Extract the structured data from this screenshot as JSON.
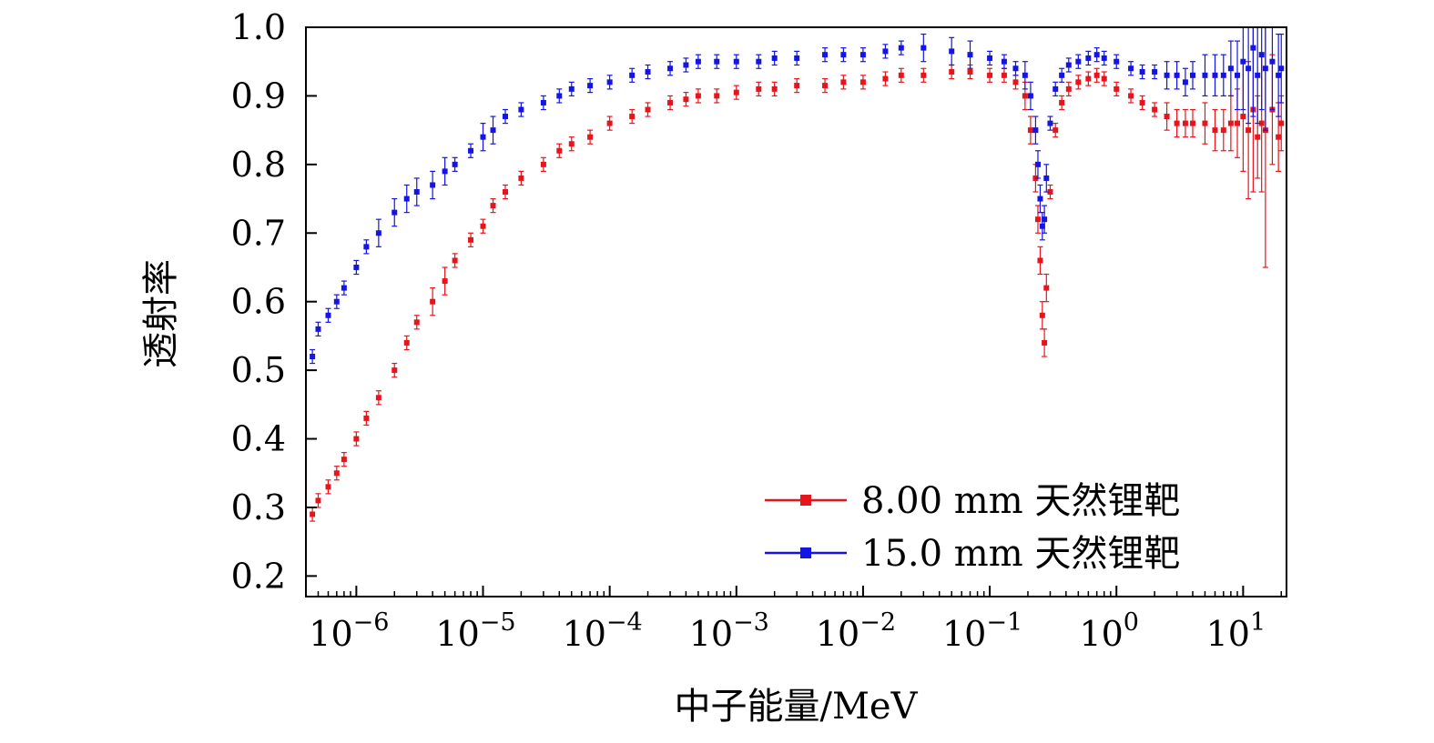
{
  "chart_data": {
    "type": "scatter",
    "title": "",
    "xlabel": "中子能量/MeV",
    "ylabel": "透射率",
    "xscale": "log",
    "xlim": [
      4e-07,
      22
    ],
    "ylim": [
      0.17,
      1.0
    ],
    "x_ticks": [
      {
        "value": 1e-06,
        "base": "10",
        "exp": "−6"
      },
      {
        "value": 1e-05,
        "base": "10",
        "exp": "−5"
      },
      {
        "value": 0.0001,
        "base": "10",
        "exp": "−4"
      },
      {
        "value": 0.001,
        "base": "10",
        "exp": "−3"
      },
      {
        "value": 0.01,
        "base": "10",
        "exp": "−2"
      },
      {
        "value": 0.1,
        "base": "10",
        "exp": "−1"
      },
      {
        "value": 1,
        "base": "10",
        "exp": "0"
      },
      {
        "value": 10,
        "base": "10",
        "exp": "1"
      }
    ],
    "y_ticks": [
      "0.2",
      "0.3",
      "0.4",
      "0.5",
      "0.6",
      "0.7",
      "0.8",
      "0.9",
      "1.0"
    ],
    "grid": false,
    "legend_position": "bottom-right",
    "series": [
      {
        "name": "8.00 mm 天然锂靶",
        "color": "#e8141c",
        "marker": "square",
        "error_bars": true,
        "x": [
          4.5e-07,
          5e-07,
          6e-07,
          7e-07,
          8e-07,
          1e-06,
          1.2e-06,
          1.5e-06,
          2e-06,
          2.5e-06,
          3e-06,
          4e-06,
          5e-06,
          6e-06,
          8e-06,
          1e-05,
          1.2e-05,
          1.5e-05,
          2e-05,
          3e-05,
          4e-05,
          5e-05,
          7e-05,
          0.0001,
          0.00015,
          0.0002,
          0.0003,
          0.0004,
          0.0005,
          0.0007,
          0.001,
          0.0015,
          0.002,
          0.003,
          0.005,
          0.007,
          0.01,
          0.015,
          0.02,
          0.03,
          0.05,
          0.07,
          0.1,
          0.13,
          0.16,
          0.19,
          0.21,
          0.23,
          0.24,
          0.25,
          0.26,
          0.27,
          0.28,
          0.3,
          0.33,
          0.37,
          0.42,
          0.5,
          0.6,
          0.7,
          0.8,
          1.0,
          1.3,
          1.6,
          2.0,
          2.5,
          3.0,
          3.5,
          4.0,
          5.0,
          6.0,
          7.0,
          8.0,
          9.0,
          10.0,
          11.0,
          12.0,
          13.0,
          14.0,
          15.0,
          17.0,
          19.0,
          20.0
        ],
        "y": [
          0.29,
          0.31,
          0.33,
          0.35,
          0.37,
          0.4,
          0.43,
          0.46,
          0.5,
          0.54,
          0.57,
          0.6,
          0.63,
          0.66,
          0.69,
          0.71,
          0.74,
          0.76,
          0.78,
          0.8,
          0.82,
          0.83,
          0.84,
          0.86,
          0.87,
          0.88,
          0.89,
          0.895,
          0.9,
          0.9,
          0.905,
          0.91,
          0.91,
          0.915,
          0.915,
          0.92,
          0.92,
          0.925,
          0.93,
          0.93,
          0.935,
          0.935,
          0.93,
          0.93,
          0.92,
          0.9,
          0.85,
          0.78,
          0.72,
          0.66,
          0.58,
          0.54,
          0.62,
          0.76,
          0.85,
          0.89,
          0.91,
          0.92,
          0.925,
          0.93,
          0.925,
          0.91,
          0.9,
          0.89,
          0.88,
          0.87,
          0.86,
          0.86,
          0.86,
          0.86,
          0.85,
          0.85,
          0.86,
          0.86,
          0.87,
          0.85,
          0.88,
          0.84,
          0.86,
          0.85,
          0.88,
          0.84,
          0.86
        ],
        "y_err": [
          0.01,
          0.01,
          0.01,
          0.01,
          0.01,
          0.01,
          0.01,
          0.01,
          0.01,
          0.01,
          0.01,
          0.02,
          0.02,
          0.01,
          0.01,
          0.01,
          0.01,
          0.01,
          0.01,
          0.01,
          0.01,
          0.01,
          0.01,
          0.01,
          0.01,
          0.01,
          0.01,
          0.01,
          0.01,
          0.01,
          0.01,
          0.01,
          0.01,
          0.01,
          0.01,
          0.01,
          0.01,
          0.01,
          0.01,
          0.01,
          0.01,
          0.01,
          0.01,
          0.01,
          0.01,
          0.02,
          0.02,
          0.02,
          0.02,
          0.02,
          0.02,
          0.02,
          0.02,
          0.01,
          0.01,
          0.01,
          0.01,
          0.01,
          0.01,
          0.01,
          0.01,
          0.01,
          0.01,
          0.01,
          0.01,
          0.02,
          0.02,
          0.02,
          0.02,
          0.03,
          0.03,
          0.03,
          0.04,
          0.05,
          0.08,
          0.1,
          0.12,
          0.06,
          0.1,
          0.2,
          0.08,
          0.05,
          0.04
        ]
      },
      {
        "name": "15.0 mm 天然锂靶",
        "color": "#1414e6",
        "marker": "square",
        "error_bars": true,
        "x": [
          4.5e-07,
          5e-07,
          6e-07,
          7e-07,
          8e-07,
          1e-06,
          1.2e-06,
          1.5e-06,
          2e-06,
          2.5e-06,
          3e-06,
          4e-06,
          5e-06,
          6e-06,
          8e-06,
          1e-05,
          1.2e-05,
          1.5e-05,
          2e-05,
          3e-05,
          4e-05,
          5e-05,
          7e-05,
          0.0001,
          0.00015,
          0.0002,
          0.0003,
          0.0004,
          0.0005,
          0.0007,
          0.001,
          0.0015,
          0.002,
          0.003,
          0.005,
          0.007,
          0.01,
          0.015,
          0.02,
          0.03,
          0.05,
          0.07,
          0.1,
          0.13,
          0.16,
          0.19,
          0.21,
          0.23,
          0.24,
          0.25,
          0.26,
          0.27,
          0.28,
          0.3,
          0.33,
          0.37,
          0.42,
          0.5,
          0.6,
          0.7,
          0.8,
          1.0,
          1.3,
          1.6,
          2.0,
          2.5,
          3.0,
          3.5,
          4.0,
          5.0,
          6.0,
          7.0,
          8.0,
          9.0,
          10.0,
          11.0,
          12.0,
          13.0,
          14.0,
          15.0,
          17.0,
          19.0,
          20.0
        ],
        "y": [
          0.52,
          0.56,
          0.58,
          0.6,
          0.62,
          0.65,
          0.68,
          0.7,
          0.73,
          0.75,
          0.76,
          0.77,
          0.79,
          0.8,
          0.82,
          0.84,
          0.85,
          0.87,
          0.88,
          0.89,
          0.9,
          0.91,
          0.915,
          0.92,
          0.93,
          0.935,
          0.94,
          0.945,
          0.95,
          0.95,
          0.95,
          0.95,
          0.955,
          0.955,
          0.96,
          0.96,
          0.96,
          0.965,
          0.97,
          0.97,
          0.965,
          0.96,
          0.955,
          0.95,
          0.94,
          0.93,
          0.9,
          0.85,
          0.8,
          0.75,
          0.71,
          0.72,
          0.78,
          0.86,
          0.91,
          0.93,
          0.945,
          0.95,
          0.955,
          0.96,
          0.955,
          0.95,
          0.94,
          0.935,
          0.935,
          0.93,
          0.93,
          0.92,
          0.93,
          0.93,
          0.93,
          0.93,
          0.94,
          0.93,
          0.95,
          0.94,
          0.97,
          0.93,
          0.96,
          0.94,
          0.95,
          0.93,
          0.94
        ],
        "y_err": [
          0.01,
          0.01,
          0.01,
          0.01,
          0.01,
          0.01,
          0.01,
          0.02,
          0.02,
          0.02,
          0.02,
          0.02,
          0.02,
          0.01,
          0.01,
          0.02,
          0.02,
          0.01,
          0.01,
          0.01,
          0.01,
          0.01,
          0.01,
          0.01,
          0.01,
          0.01,
          0.01,
          0.01,
          0.01,
          0.01,
          0.01,
          0.01,
          0.01,
          0.01,
          0.01,
          0.01,
          0.01,
          0.01,
          0.01,
          0.02,
          0.02,
          0.02,
          0.01,
          0.01,
          0.01,
          0.02,
          0.02,
          0.02,
          0.02,
          0.02,
          0.02,
          0.02,
          0.02,
          0.01,
          0.01,
          0.01,
          0.01,
          0.01,
          0.01,
          0.01,
          0.01,
          0.01,
          0.01,
          0.01,
          0.01,
          0.02,
          0.02,
          0.02,
          0.02,
          0.03,
          0.03,
          0.03,
          0.04,
          0.05,
          0.07,
          0.08,
          0.1,
          0.07,
          0.08,
          0.09,
          0.07,
          0.06,
          0.05
        ]
      }
    ]
  }
}
